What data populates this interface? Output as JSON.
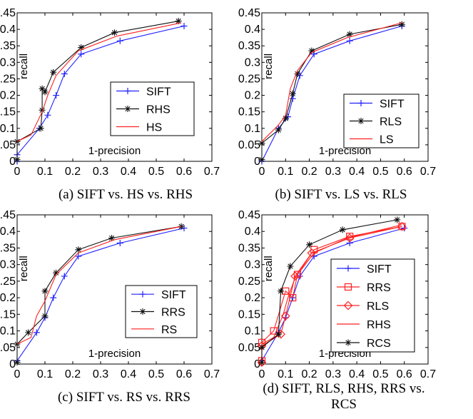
{
  "colors": {
    "blue": "#2222ff",
    "black": "#111111",
    "red": "#ff2020"
  },
  "chart_data": [
    {
      "type": "line",
      "caption": "(a) SIFT vs. HS vs. RHS",
      "xlabel": "1-precision",
      "ylabel": "recall",
      "xlim": [
        0,
        0.7
      ],
      "ylim": [
        0,
        0.45
      ],
      "xticks": [
        "0",
        "0.1",
        "0.2",
        "0.3",
        "0.4",
        "0.5",
        "0.6",
        "0.7"
      ],
      "yticks": [
        "0",
        "0.05",
        "0.1",
        "0.15",
        "0.2",
        "0.25",
        "0.3",
        "0.35",
        "0.4",
        "0.45"
      ],
      "legend_position": "right",
      "series": [
        {
          "name": "SIFT",
          "color": "blue",
          "marker": "plus",
          "x": [
            0,
            0,
            0.08,
            0.11,
            0.14,
            0.17,
            0.23,
            0.37,
            0.6
          ],
          "y": [
            0,
            0.02,
            0.1,
            0.14,
            0.2,
            0.265,
            0.325,
            0.365,
            0.41
          ]
        },
        {
          "name": "RHS",
          "color": "black",
          "marker": "star",
          "x": [
            0,
            0,
            0.085,
            0.09,
            0.09,
            0.1,
            0.13,
            0.23,
            0.35,
            0.58
          ],
          "y": [
            0.005,
            0.06,
            0.1,
            0.155,
            0.22,
            0.21,
            0.27,
            0.345,
            0.39,
            0.425
          ]
        },
        {
          "name": "HS",
          "color": "red",
          "marker": "none",
          "x": [
            0,
            0.05,
            0.09,
            0.11,
            0.14,
            0.22,
            0.36,
            0.59
          ],
          "y": [
            0.06,
            0.08,
            0.15,
            0.2,
            0.26,
            0.335,
            0.38,
            0.42
          ]
        }
      ]
    },
    {
      "type": "line",
      "caption": "(b) SIFT vs. LS vs. RLS",
      "xlabel": "1-precision",
      "ylabel": "recall",
      "xlim": [
        0,
        0.7
      ],
      "ylim": [
        0,
        0.45
      ],
      "xticks": [
        "0",
        "0.1",
        "0.2",
        "0.3",
        "0.4",
        "0.5",
        "0.6",
        "0.7"
      ],
      "yticks": [
        "0",
        "0.05",
        "0.1",
        "0.15",
        "0.2",
        "0.25",
        "0.3",
        "0.35",
        "0.4",
        "0.45"
      ],
      "legend_position": "right",
      "series": [
        {
          "name": "SIFT",
          "color": "blue",
          "marker": "plus",
          "x": [
            0,
            0.07,
            0.11,
            0.13,
            0.16,
            0.22,
            0.37,
            0.59
          ],
          "y": [
            0.0,
            0.1,
            0.135,
            0.19,
            0.26,
            0.325,
            0.365,
            0.41
          ]
        },
        {
          "name": "RLS",
          "color": "black",
          "marker": "star",
          "x": [
            0,
            0,
            0.07,
            0.1,
            0.13,
            0.15,
            0.21,
            0.37,
            0.59
          ],
          "y": [
            0.005,
            0.055,
            0.095,
            0.13,
            0.205,
            0.265,
            0.335,
            0.385,
            0.415
          ]
        },
        {
          "name": "LS",
          "color": "red",
          "marker": "none",
          "x": [
            0,
            0.07,
            0.1,
            0.12,
            0.15,
            0.21,
            0.36,
            0.59
          ],
          "y": [
            0.06,
            0.11,
            0.14,
            0.22,
            0.275,
            0.33,
            0.375,
            0.42
          ]
        }
      ]
    },
    {
      "type": "line",
      "caption": "(c) SIFT vs. RS vs. RRS",
      "xlabel": "1-precision",
      "ylabel": "recall",
      "xlim": [
        0,
        0.7
      ],
      "ylim": [
        0,
        0.45
      ],
      "xticks": [
        "0",
        "0.1",
        "0.2",
        "0.3",
        "0.4",
        "0.5",
        "0.6",
        "0.7"
      ],
      "yticks": [
        "0",
        "0.05",
        "0.1",
        "0.15",
        "0.2",
        "0.25",
        "0.3",
        "0.35",
        "0.4",
        "0.45"
      ],
      "legend_position": "right",
      "series": [
        {
          "name": "SIFT",
          "color": "blue",
          "marker": "plus",
          "x": [
            0,
            0.07,
            0.1,
            0.13,
            0.17,
            0.22,
            0.37,
            0.6
          ],
          "y": [
            0.01,
            0.095,
            0.14,
            0.2,
            0.265,
            0.325,
            0.365,
            0.41
          ]
        },
        {
          "name": "RRS",
          "color": "black",
          "marker": "star",
          "x": [
            0,
            0,
            0.04,
            0.1,
            0.1,
            0.14,
            0.22,
            0.34,
            0.59
          ],
          "y": [
            0.005,
            0.06,
            0.095,
            0.145,
            0.22,
            0.275,
            0.345,
            0.38,
            0.415
          ]
        },
        {
          "name": "RS",
          "color": "red",
          "marker": "none",
          "x": [
            0,
            0.05,
            0.07,
            0.1,
            0.14,
            0.22,
            0.35,
            0.59
          ],
          "y": [
            0.06,
            0.08,
            0.145,
            0.19,
            0.27,
            0.335,
            0.375,
            0.415
          ]
        }
      ]
    },
    {
      "type": "line",
      "caption": "(d) SIFT, RLS, RHS, RRS vs. RCS",
      "xlabel": "1-precision",
      "ylabel": "recall",
      "xlim": [
        0,
        0.7
      ],
      "ylim": [
        0,
        0.45
      ],
      "xticks": [
        "0",
        "0.1",
        "0.2",
        "0.3",
        "0.4",
        "0.5",
        "0.6",
        "0.7"
      ],
      "yticks": [
        "0",
        "0.05",
        "0.1",
        "0.15",
        "0.2",
        "0.25",
        "0.3",
        "0.35",
        "0.4",
        "0.45"
      ],
      "legend_position": "right",
      "series": [
        {
          "name": "SIFT",
          "color": "blue",
          "marker": "plus",
          "x": [
            0,
            0.07,
            0.1,
            0.13,
            0.16,
            0.22,
            0.37,
            0.6
          ],
          "y": [
            0.01,
            0.095,
            0.14,
            0.2,
            0.265,
            0.325,
            0.365,
            0.41
          ]
        },
        {
          "name": "RRS",
          "color": "red",
          "marker": "square",
          "x": [
            0,
            0,
            0.05,
            0.1,
            0.13,
            0.15,
            0.22,
            0.37,
            0.59
          ],
          "y": [
            0.01,
            0.065,
            0.1,
            0.22,
            0.2,
            0.27,
            0.345,
            0.385,
            0.415
          ]
        },
        {
          "name": "RLS",
          "color": "red",
          "marker": "diamond",
          "x": [
            0,
            0,
            0.08,
            0.1,
            0.14,
            0.21,
            0.37,
            0.59
          ],
          "y": [
            0.005,
            0.055,
            0.09,
            0.145,
            0.265,
            0.335,
            0.38,
            0.415
          ]
        },
        {
          "name": "RHS",
          "color": "red",
          "marker": "none",
          "x": [
            0,
            0.05,
            0.09,
            0.11,
            0.14,
            0.22,
            0.36,
            0.59
          ],
          "y": [
            0.06,
            0.08,
            0.15,
            0.2,
            0.26,
            0.335,
            0.38,
            0.42
          ]
        },
        {
          "name": "RCS",
          "color": "black",
          "marker": "star",
          "x": [
            0,
            0,
            0.07,
            0.08,
            0.12,
            0.2,
            0.34,
            0.57
          ],
          "y": [
            0.005,
            0.05,
            0.09,
            0.22,
            0.295,
            0.36,
            0.405,
            0.435
          ]
        }
      ]
    }
  ]
}
